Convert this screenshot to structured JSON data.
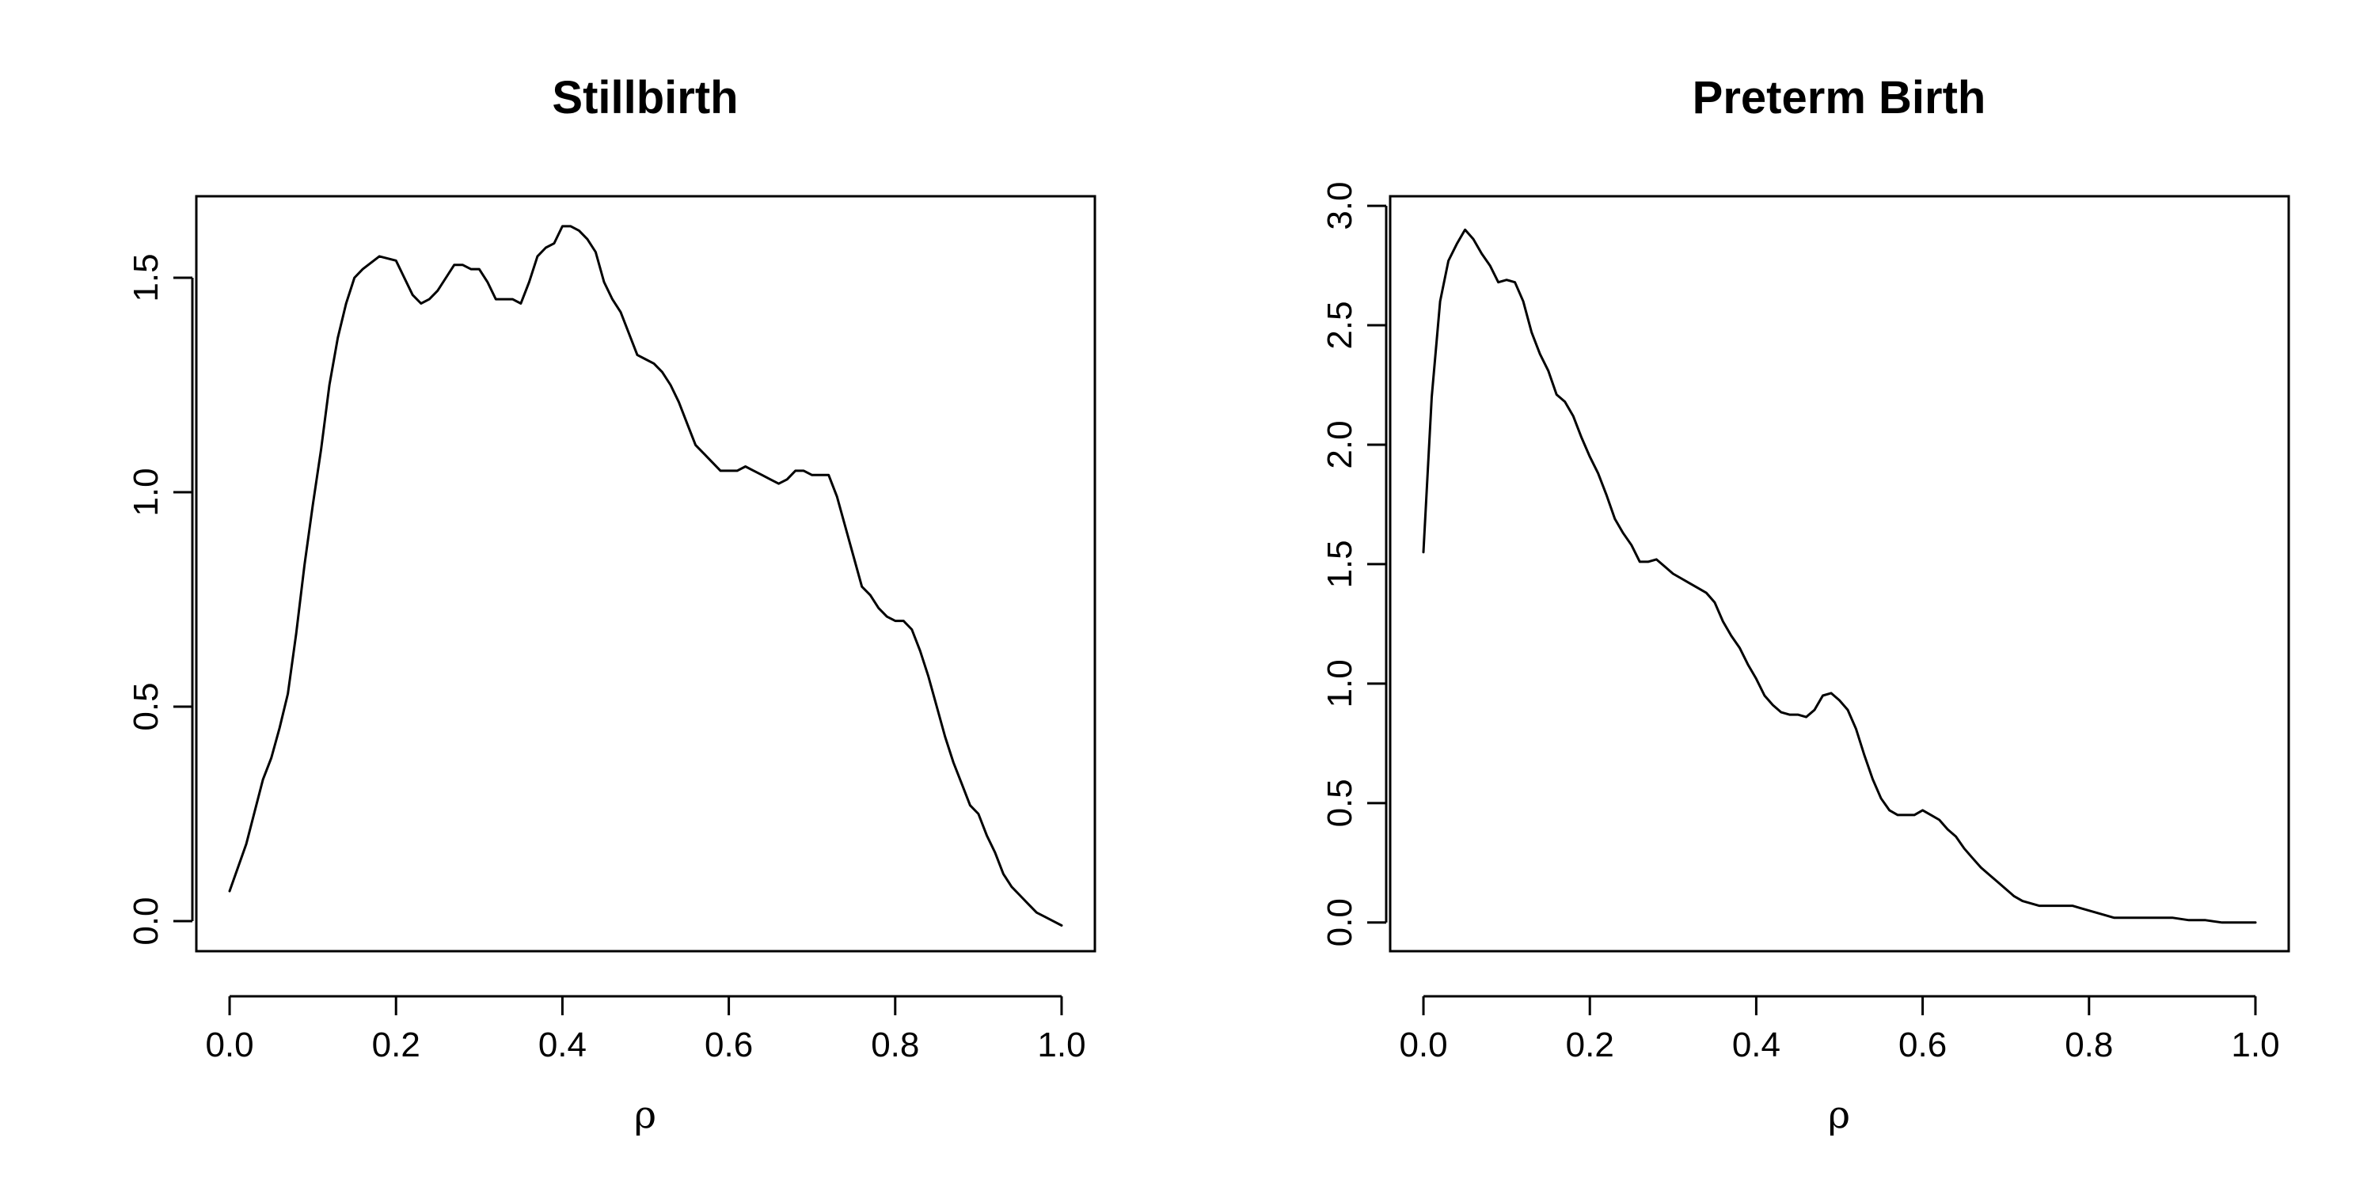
{
  "colors": {
    "line": "#000000",
    "frame": "#000000",
    "background": "#ffffff"
  },
  "chart_data": [
    {
      "type": "line",
      "title": "Stillbirth",
      "xlabel": "ρ",
      "ylabel": "",
      "xlim": [
        -0.04,
        1.04
      ],
      "ylim": [
        -0.07,
        1.69
      ],
      "x_ticks": [
        0.0,
        0.2,
        0.4,
        0.6,
        0.8,
        1.0
      ],
      "x_tick_labels": [
        "0.0",
        "0.2",
        "0.4",
        "0.6",
        "0.8",
        "1.0"
      ],
      "y_ticks": [
        0.0,
        0.5,
        1.0,
        1.5
      ],
      "y_tick_labels": [
        "0.0",
        "0.5",
        "1.0",
        "1.5"
      ],
      "grid": false,
      "legend": "none",
      "series": [
        {
          "x": [
            0.0,
            0.02,
            0.04,
            0.05,
            0.06,
            0.07,
            0.08,
            0.09,
            0.1,
            0.11,
            0.12,
            0.13,
            0.14,
            0.15,
            0.16,
            0.18,
            0.2,
            0.22,
            0.23,
            0.24,
            0.25,
            0.26,
            0.27,
            0.28,
            0.29,
            0.3,
            0.31,
            0.32,
            0.33,
            0.34,
            0.35,
            0.36,
            0.37,
            0.38,
            0.39,
            0.4,
            0.41,
            0.42,
            0.43,
            0.44,
            0.45,
            0.46,
            0.47,
            0.48,
            0.49,
            0.5,
            0.51,
            0.52,
            0.53,
            0.54,
            0.55,
            0.56,
            0.57,
            0.58,
            0.59,
            0.6,
            0.61,
            0.62,
            0.63,
            0.64,
            0.65,
            0.66,
            0.67,
            0.68,
            0.69,
            0.7,
            0.71,
            0.72,
            0.73,
            0.74,
            0.75,
            0.76,
            0.77,
            0.78,
            0.79,
            0.8,
            0.81,
            0.82,
            0.83,
            0.84,
            0.85,
            0.86,
            0.87,
            0.88,
            0.89,
            0.9,
            0.91,
            0.92,
            0.93,
            0.94,
            0.95,
            0.96,
            0.97,
            0.98,
            0.99,
            1.0
          ],
          "y": [
            0.07,
            0.18,
            0.33,
            0.38,
            0.45,
            0.53,
            0.67,
            0.83,
            0.97,
            1.1,
            1.25,
            1.36,
            1.44,
            1.5,
            1.52,
            1.55,
            1.54,
            1.46,
            1.44,
            1.45,
            1.47,
            1.5,
            1.53,
            1.53,
            1.52,
            1.52,
            1.49,
            1.45,
            1.45,
            1.45,
            1.44,
            1.49,
            1.55,
            1.57,
            1.58,
            1.62,
            1.62,
            1.61,
            1.59,
            1.56,
            1.49,
            1.45,
            1.42,
            1.37,
            1.32,
            1.31,
            1.3,
            1.28,
            1.25,
            1.21,
            1.16,
            1.11,
            1.09,
            1.07,
            1.05,
            1.05,
            1.05,
            1.06,
            1.05,
            1.04,
            1.03,
            1.02,
            1.03,
            1.05,
            1.05,
            1.04,
            1.04,
            1.04,
            0.99,
            0.92,
            0.85,
            0.78,
            0.76,
            0.73,
            0.71,
            0.7,
            0.7,
            0.68,
            0.63,
            0.57,
            0.5,
            0.43,
            0.37,
            0.32,
            0.27,
            0.25,
            0.2,
            0.16,
            0.11,
            0.08,
            0.06,
            0.04,
            0.02,
            0.01,
            0.0,
            -0.01
          ]
        }
      ]
    },
    {
      "type": "line",
      "title": "Preterm Birth",
      "xlabel": "ρ",
      "ylabel": "",
      "xlim": [
        -0.04,
        1.04
      ],
      "ylim": [
        -0.12,
        3.04
      ],
      "x_ticks": [
        0.0,
        0.2,
        0.4,
        0.6,
        0.8,
        1.0
      ],
      "x_tick_labels": [
        "0.0",
        "0.2",
        "0.4",
        "0.6",
        "0.8",
        "1.0"
      ],
      "y_ticks": [
        0.0,
        0.5,
        1.0,
        1.5,
        2.0,
        2.5,
        3.0
      ],
      "y_tick_labels": [
        "0.0",
        "0.5",
        "1.0",
        "1.5",
        "2.0",
        "2.5",
        "3.0"
      ],
      "grid": false,
      "legend": "none",
      "series": [
        {
          "x": [
            0.0,
            0.01,
            0.02,
            0.03,
            0.04,
            0.05,
            0.06,
            0.07,
            0.08,
            0.09,
            0.1,
            0.11,
            0.12,
            0.13,
            0.14,
            0.15,
            0.16,
            0.17,
            0.18,
            0.19,
            0.2,
            0.21,
            0.22,
            0.23,
            0.24,
            0.25,
            0.26,
            0.27,
            0.28,
            0.29,
            0.3,
            0.31,
            0.32,
            0.33,
            0.34,
            0.35,
            0.36,
            0.37,
            0.38,
            0.39,
            0.4,
            0.41,
            0.42,
            0.43,
            0.44,
            0.45,
            0.46,
            0.47,
            0.48,
            0.49,
            0.5,
            0.51,
            0.52,
            0.53,
            0.54,
            0.55,
            0.56,
            0.57,
            0.58,
            0.59,
            0.6,
            0.61,
            0.62,
            0.63,
            0.64,
            0.65,
            0.66,
            0.67,
            0.68,
            0.69,
            0.7,
            0.71,
            0.72,
            0.73,
            0.74,
            0.75,
            0.76,
            0.77,
            0.78,
            0.79,
            0.8,
            0.81,
            0.82,
            0.83,
            0.84,
            0.85,
            0.86,
            0.87,
            0.88,
            0.89,
            0.9,
            0.92,
            0.94,
            0.96,
            0.98,
            1.0
          ],
          "y": [
            1.55,
            2.2,
            2.6,
            2.77,
            2.84,
            2.9,
            2.86,
            2.8,
            2.75,
            2.68,
            2.69,
            2.68,
            2.6,
            2.47,
            2.38,
            2.31,
            2.21,
            2.18,
            2.12,
            2.03,
            1.95,
            1.88,
            1.79,
            1.69,
            1.63,
            1.58,
            1.51,
            1.51,
            1.52,
            1.49,
            1.46,
            1.44,
            1.42,
            1.4,
            1.38,
            1.34,
            1.26,
            1.2,
            1.15,
            1.08,
            1.02,
            0.95,
            0.91,
            0.88,
            0.87,
            0.87,
            0.86,
            0.89,
            0.95,
            0.96,
            0.93,
            0.89,
            0.81,
            0.7,
            0.6,
            0.52,
            0.47,
            0.45,
            0.45,
            0.45,
            0.47,
            0.45,
            0.43,
            0.39,
            0.36,
            0.31,
            0.27,
            0.23,
            0.2,
            0.17,
            0.14,
            0.11,
            0.09,
            0.08,
            0.07,
            0.07,
            0.07,
            0.07,
            0.07,
            0.06,
            0.05,
            0.04,
            0.03,
            0.02,
            0.02,
            0.02,
            0.02,
            0.02,
            0.02,
            0.02,
            0.02,
            0.01,
            0.01,
            0.0,
            0.0,
            0.0
          ]
        }
      ]
    }
  ]
}
